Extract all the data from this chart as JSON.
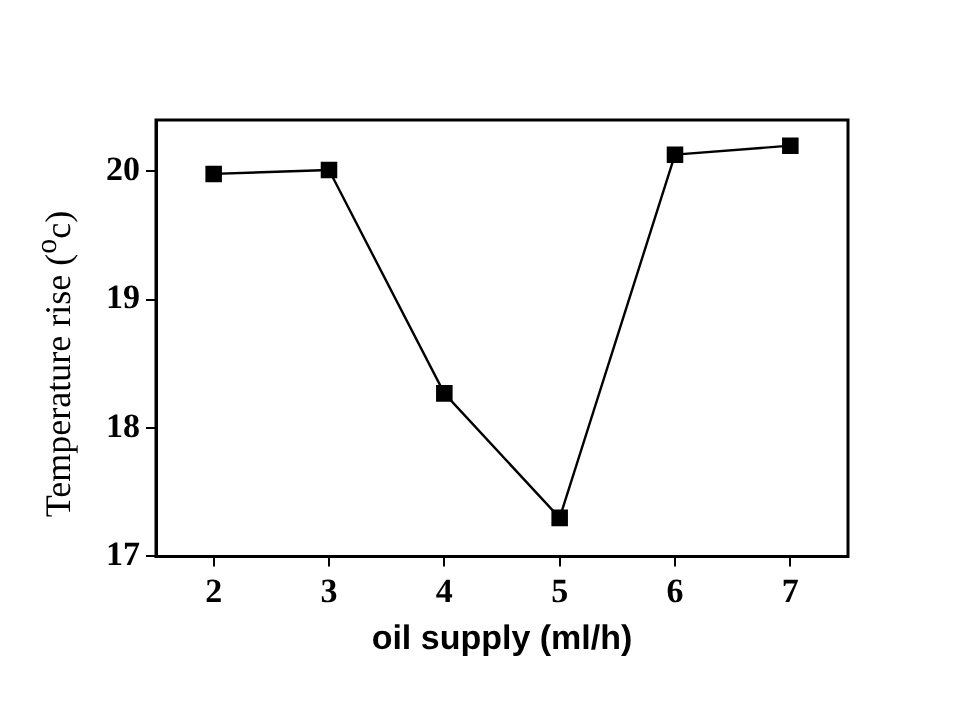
{
  "chart_data": {
    "type": "line",
    "xlabel": "oil supply (ml/h)",
    "ylabel": "Temperature rise ($^{o}$c)",
    "x": [
      2,
      3,
      4,
      5,
      6,
      7
    ],
    "series": [
      {
        "color": "#000000",
        "values": [
          19.98,
          20.01,
          18.27,
          17.3,
          20.13,
          20.2
        ]
      }
    ],
    "xlim": [
      1.5,
      7.5
    ],
    "xticks": [
      2,
      3,
      4,
      5,
      6,
      7
    ],
    "ylim": [
      17,
      20.4
    ],
    "yticks": [
      17,
      18,
      19,
      20
    ],
    "grid": false,
    "legend": false,
    "marker": "square",
    "line_style": "solid"
  }
}
